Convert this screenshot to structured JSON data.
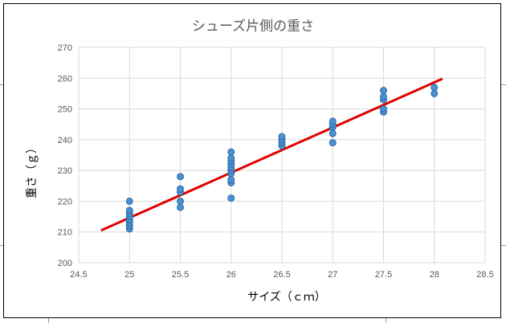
{
  "chart_data": {
    "type": "scatter",
    "title": "シューズ片側の重さ",
    "xlabel": "サイズ（ｃｍ）",
    "ylabel": "重さ（ｇ）",
    "xlim": [
      24.5,
      28.5
    ],
    "ylim": [
      200,
      270
    ],
    "x_ticks": [
      24.5,
      25,
      25.5,
      26,
      26.5,
      27,
      27.5,
      28,
      28.5
    ],
    "y_ticks": [
      200,
      210,
      220,
      230,
      240,
      250,
      260,
      270
    ],
    "grid": true,
    "legend": "none",
    "series": [
      {
        "marker_color": "#4a90d0",
        "points": [
          [
            25,
            211
          ],
          [
            25,
            212
          ],
          [
            25,
            213
          ],
          [
            25,
            214
          ],
          [
            25,
            215
          ],
          [
            25,
            216
          ],
          [
            25,
            217
          ],
          [
            25,
            220
          ],
          [
            25.5,
            218
          ],
          [
            25.5,
            220
          ],
          [
            25.5,
            223
          ],
          [
            25.5,
            224
          ],
          [
            25.5,
            228
          ],
          [
            26,
            221
          ],
          [
            26,
            226
          ],
          [
            26,
            227
          ],
          [
            26,
            229
          ],
          [
            26,
            230
          ],
          [
            26,
            231
          ],
          [
            26,
            232
          ],
          [
            26,
            233
          ],
          [
            26,
            234
          ],
          [
            26,
            236
          ],
          [
            26.5,
            238
          ],
          [
            26.5,
            239
          ],
          [
            26.5,
            240
          ],
          [
            26.5,
            241
          ],
          [
            27,
            239
          ],
          [
            27,
            242
          ],
          [
            27,
            244
          ],
          [
            27,
            245
          ],
          [
            27,
            246
          ],
          [
            27.5,
            249
          ],
          [
            27.5,
            250
          ],
          [
            27.5,
            253
          ],
          [
            27.5,
            254
          ],
          [
            27.5,
            256
          ],
          [
            28,
            255
          ],
          [
            28,
            257
          ]
        ]
      }
    ],
    "trendline": {
      "color": "#e00000",
      "x": [
        24.72,
        28.08
      ],
      "y": [
        210.5,
        259.8
      ]
    }
  }
}
